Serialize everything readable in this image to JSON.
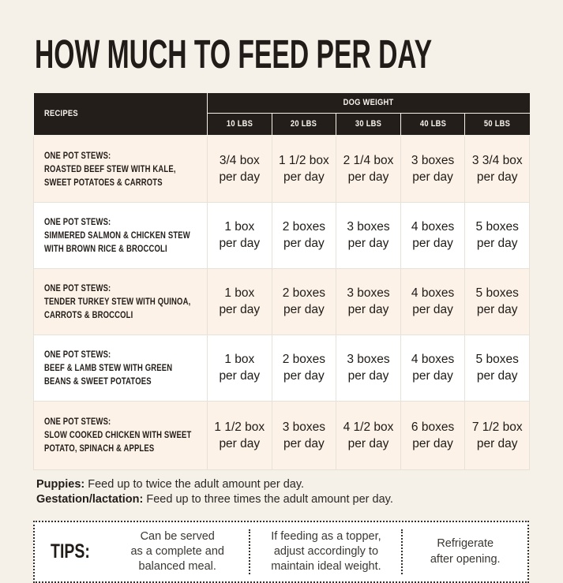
{
  "title": "HOW MUCH TO FEED PER DAY",
  "colors": {
    "page_background": "#f5f1e9",
    "header_background": "#231e1a",
    "header_text": "#f7f3ec",
    "alt_row_background": "#fcf2e8",
    "cell_border": "#e6e2d8",
    "text": "#221d18"
  },
  "table": {
    "recipes_header": "RECIPES",
    "weight_group_header": "DOG WEIGHT",
    "weight_columns": [
      "10 LBS",
      "20 LBS",
      "30 LBS",
      "40 LBS",
      "50 LBS"
    ],
    "per_day_label": "per day",
    "rows": [
      {
        "category": "ONE POT STEWS:",
        "name": "ROASTED BEEF STEW WITH KALE,\nSWEET POTATOES & CARROTS",
        "amounts": [
          "3/4 box",
          "1 1/2 box",
          "2 1/4 box",
          "3 boxes",
          "3 3/4 box"
        ]
      },
      {
        "category": "ONE POT STEWS:",
        "name": "SIMMERED SALMON & CHICKEN STEW\nWITH BROWN RICE & BROCCOLI",
        "amounts": [
          "1 box",
          "2 boxes",
          "3 boxes",
          "4 boxes",
          "5 boxes"
        ]
      },
      {
        "category": "ONE POT STEWS:",
        "name": "TENDER TURKEY STEW WITH QUINOA,\nCARROTS & BROCCOLI",
        "amounts": [
          "1 box",
          "2 boxes",
          "3 boxes",
          "4 boxes",
          "5 boxes"
        ]
      },
      {
        "category": "ONE POT STEWS:",
        "name": "BEEF & LAMB STEW WITH GREEN\nBEANS & SWEET POTATOES",
        "amounts": [
          "1 box",
          "2 boxes",
          "3 boxes",
          "4 boxes",
          "5 boxes"
        ]
      },
      {
        "category": "ONE POT STEWS:",
        "name": "SLOW COOKED CHICKEN WITH SWEET\nPOTATO, SPINACH & APPLES",
        "amounts": [
          "1 1/2 box",
          "3 boxes",
          "4 1/2 box",
          "6 boxes",
          "7 1/2 box"
        ]
      }
    ]
  },
  "notes": [
    {
      "label": "Puppies:",
      "text": "Feed up to twice the adult amount per day."
    },
    {
      "label": "Gestation/lactation:",
      "text": "Feed up to three times the adult amount per day."
    }
  ],
  "tips": {
    "label": "TIPS:",
    "items": [
      "Can be served\nas a complete and\nbalanced meal.",
      "If feeding as a topper,\nadjust accordingly to\nmaintain ideal weight.",
      "Refrigerate\nafter opening."
    ]
  }
}
